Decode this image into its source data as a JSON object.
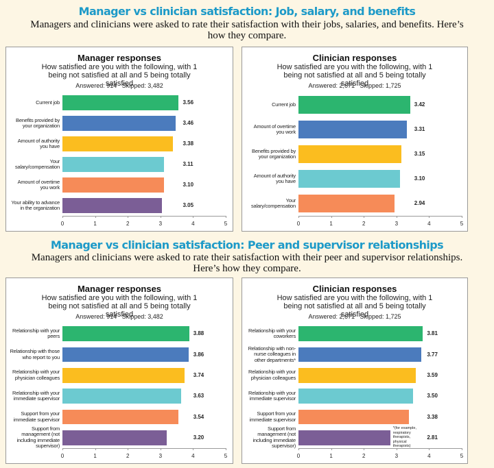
{
  "sections": [
    {
      "title": "Manager vs clinician satisfaction: Job, salary, and benefits",
      "subtitle": "Managers and clinicians were asked to rate their satisfaction with their jobs, salaries, and benefits. Here’s how they compare."
    },
    {
      "title": "Manager vs clinician satisfaction: Peer and supervisor relationships",
      "subtitle": "Managers and clinicians were asked to rate their satisfaction with their peer and supervisor relationships. Here’s how they compare."
    }
  ],
  "chart_data": [
    {
      "type": "bar",
      "orientation": "horizontal",
      "title": "Manager responses",
      "subtitle": "How satisfied are you with the following, with 1 being not satisfied at all and 5 being totally satisfied",
      "note": "Answered: 914   Skipped: 3,482",
      "categories": [
        "Current job",
        "Benefits provided by your organization",
        "Amount of authority you have",
        "Your salary/compensation",
        "Amount of overtime you work",
        "Your ability to advance in the organization"
      ],
      "values": [
        3.56,
        3.46,
        3.38,
        3.11,
        3.1,
        3.05
      ],
      "value_labels": [
        "3.56",
        "3.46",
        "3.38",
        "3.11",
        "3.10",
        "3.05"
      ],
      "colors": [
        "#2cb56f",
        "#4b7bbd",
        "#fbbd1f",
        "#6ccad0",
        "#f68b58",
        "#7b5e96"
      ],
      "xlim": [
        0,
        5
      ],
      "xticks": [
        0,
        1,
        2,
        3,
        4,
        5
      ],
      "grid": false
    },
    {
      "type": "bar",
      "orientation": "horizontal",
      "title": "Clinician responses",
      "subtitle": "How satisfied are you with the following, with 1 being not satisfied at all and 5 being totally satisfied",
      "note": "Answered: 2,671   Skipped: 1,725",
      "categories": [
        "Current job",
        "Amount of overtime you work",
        "Benefits provided by your organization",
        "Amount of authority you have",
        "Your salary/compensation"
      ],
      "values": [
        3.42,
        3.31,
        3.15,
        3.1,
        2.94
      ],
      "value_labels": [
        "3.42",
        "3.31",
        "3.15",
        "3.10",
        "2.94"
      ],
      "colors": [
        "#2cb56f",
        "#4b7bbd",
        "#fbbd1f",
        "#6ccad0",
        "#f68b58"
      ],
      "xlim": [
        0,
        5
      ],
      "xticks": [
        0,
        1,
        2,
        3,
        4,
        5
      ],
      "grid": false
    },
    {
      "type": "bar",
      "orientation": "horizontal",
      "title": "Manager responses",
      "subtitle": "How satisfied are you with the following, with 1 being not satisfied at all and 5 being totally satisfied",
      "note": "Answered: 914   Skipped: 3,482",
      "categories": [
        "Relationship with your peers",
        "Relationship with those who report to you",
        "Relationship with your physician colleagues",
        "Relationship with your immediate supervisor",
        "Support from your immediate supervisor",
        "Support from management (not including immediate supervisor)"
      ],
      "values": [
        3.88,
        3.86,
        3.74,
        3.63,
        3.54,
        3.2
      ],
      "value_labels": [
        "3.88",
        "3.86",
        "3.74",
        "3.63",
        "3.54",
        "3.20"
      ],
      "colors": [
        "#2cb56f",
        "#4b7bbd",
        "#fbbd1f",
        "#6ccad0",
        "#f68b58",
        "#7b5e96"
      ],
      "xlim": [
        0,
        5
      ],
      "xticks": [
        0,
        1,
        2,
        3,
        4,
        5
      ],
      "grid": false
    },
    {
      "type": "bar",
      "orientation": "horizontal",
      "title": "Clinician responses",
      "subtitle": "How satisfied are you with the following, with 1 being not satisfied at all and 5 being totally satisfied",
      "note": "Answered: 2,671   Skipped: 1,725",
      "categories": [
        "Relationship with your coworkers",
        "Relationship with non-nurse colleagues in other departments*",
        "Relationship with your physician colleagues",
        "Relationship with your immediate supervisor",
        "Support from your immediate supervisor",
        "Support from management (not including immediate supervisor)"
      ],
      "values": [
        3.81,
        3.77,
        3.59,
        3.5,
        3.38,
        2.81
      ],
      "value_labels": [
        "3.81",
        "3.77",
        "3.59",
        "3.50",
        "3.38",
        "2.81"
      ],
      "colors": [
        "#2cb56f",
        "#4b7bbd",
        "#fbbd1f",
        "#6ccad0",
        "#f68b58",
        "#7b5e96"
      ],
      "annotation": "*(for example, respiratory therapists, physical therapists)",
      "xlim": [
        0,
        5
      ],
      "xticks": [
        0,
        1,
        2,
        3,
        4,
        5
      ],
      "grid": false
    }
  ]
}
